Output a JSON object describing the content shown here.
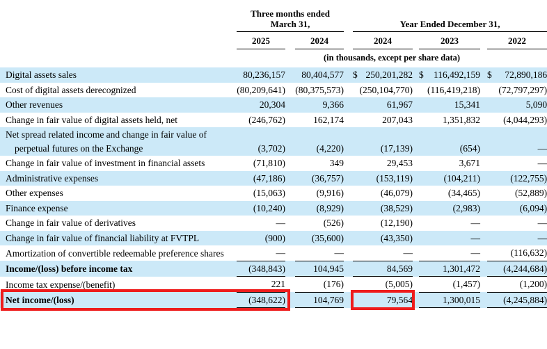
{
  "table": {
    "group1": {
      "label_line1": "Three months ended",
      "label_line2": "March 31,",
      "years": [
        "2025",
        "2024"
      ]
    },
    "group2": {
      "label": "Year Ended December 31,",
      "years": [
        "2024",
        "2023",
        "2022"
      ]
    },
    "units_note": "(in thousands, except per share data)",
    "rows": [
      {
        "label": "Digital assets sales",
        "values": [
          "80,236,157",
          "80,404,577",
          "$ 250,201,282",
          "$ 116,492,159",
          "$ 72,890,186"
        ]
      },
      {
        "label": "Cost of digital assets derecognized",
        "values": [
          "(80,209,641)",
          "(80,375,573)",
          "(250,104,770)",
          "(116,419,218)",
          "(72,797,297)"
        ]
      },
      {
        "label": "Other revenues",
        "values": [
          "20,304",
          "9,366",
          "61,967",
          "15,341",
          "5,090"
        ]
      },
      {
        "label": "Change in fair value of digital assets held, net",
        "values": [
          "(246,762)",
          "162,174",
          "207,043",
          "1,351,832",
          "(4,044,293)"
        ]
      },
      {
        "label": "Net spread related income and change in fair value of perpetual futures on the Exchange",
        "values": [
          "(3,702)",
          "(4,220)",
          "(17,139)",
          "(654)",
          "—"
        ]
      },
      {
        "label": "Change in fair value of investment in financial assets",
        "values": [
          "(71,810)",
          "349",
          "29,453",
          "3,671",
          "—"
        ]
      },
      {
        "label": "Administrative expenses",
        "values": [
          "(47,186)",
          "(36,757)",
          "(153,119)",
          "(104,211)",
          "(122,755)"
        ]
      },
      {
        "label": "Other expenses",
        "values": [
          "(15,063)",
          "(9,916)",
          "(46,079)",
          "(34,465)",
          "(52,889)"
        ]
      },
      {
        "label": "Finance expense",
        "values": [
          "(10,240)",
          "(8,929)",
          "(38,529)",
          "(2,983)",
          "(6,094)"
        ]
      },
      {
        "label": "Change in fair value of derivatives",
        "values": [
          "—",
          "(526)",
          "(12,190)",
          "—",
          "—"
        ]
      },
      {
        "label": "Change in fair value of financial liability at FVTPL",
        "values": [
          "(900)",
          "(35,600)",
          "(43,350)",
          "—",
          "—"
        ]
      },
      {
        "label": "Amortization of convertible redeemable preference shares",
        "values": [
          "—",
          "—",
          "—",
          "—",
          "(116,632)"
        ],
        "underline": true
      },
      {
        "label": "Income/(loss) before income tax",
        "values": [
          "(348,843)",
          "104,945",
          "84,569",
          "1,301,472",
          "(4,244,684)"
        ],
        "bold": true,
        "underline": true
      },
      {
        "label": "Income tax expense/(benefit)",
        "values": [
          "221",
          "(176)",
          "(5,005)",
          "(1,457)",
          "(1,200)"
        ],
        "underline": true
      },
      {
        "label": "Net income/(loss)",
        "values": [
          "(348,622)",
          "104,769",
          "79,564",
          "1,300,015",
          "(4,245,884)"
        ],
        "bold": true,
        "underline": true
      }
    ]
  },
  "highlights": {
    "color": "#ee1c1c",
    "items": [
      {
        "name": "net-income-row-box",
        "highlighted_row": "Net income/(loss)",
        "covers": "row label and three-months-2025 value (348,622)"
      },
      {
        "name": "net-income-2024-annual-box",
        "highlighted_value": "79,564"
      }
    ]
  },
  "colors": {
    "row_stripe": "#cce9f8",
    "text": "#000000",
    "highlight_red": "#ee1c1c",
    "background": "#ffffff"
  }
}
